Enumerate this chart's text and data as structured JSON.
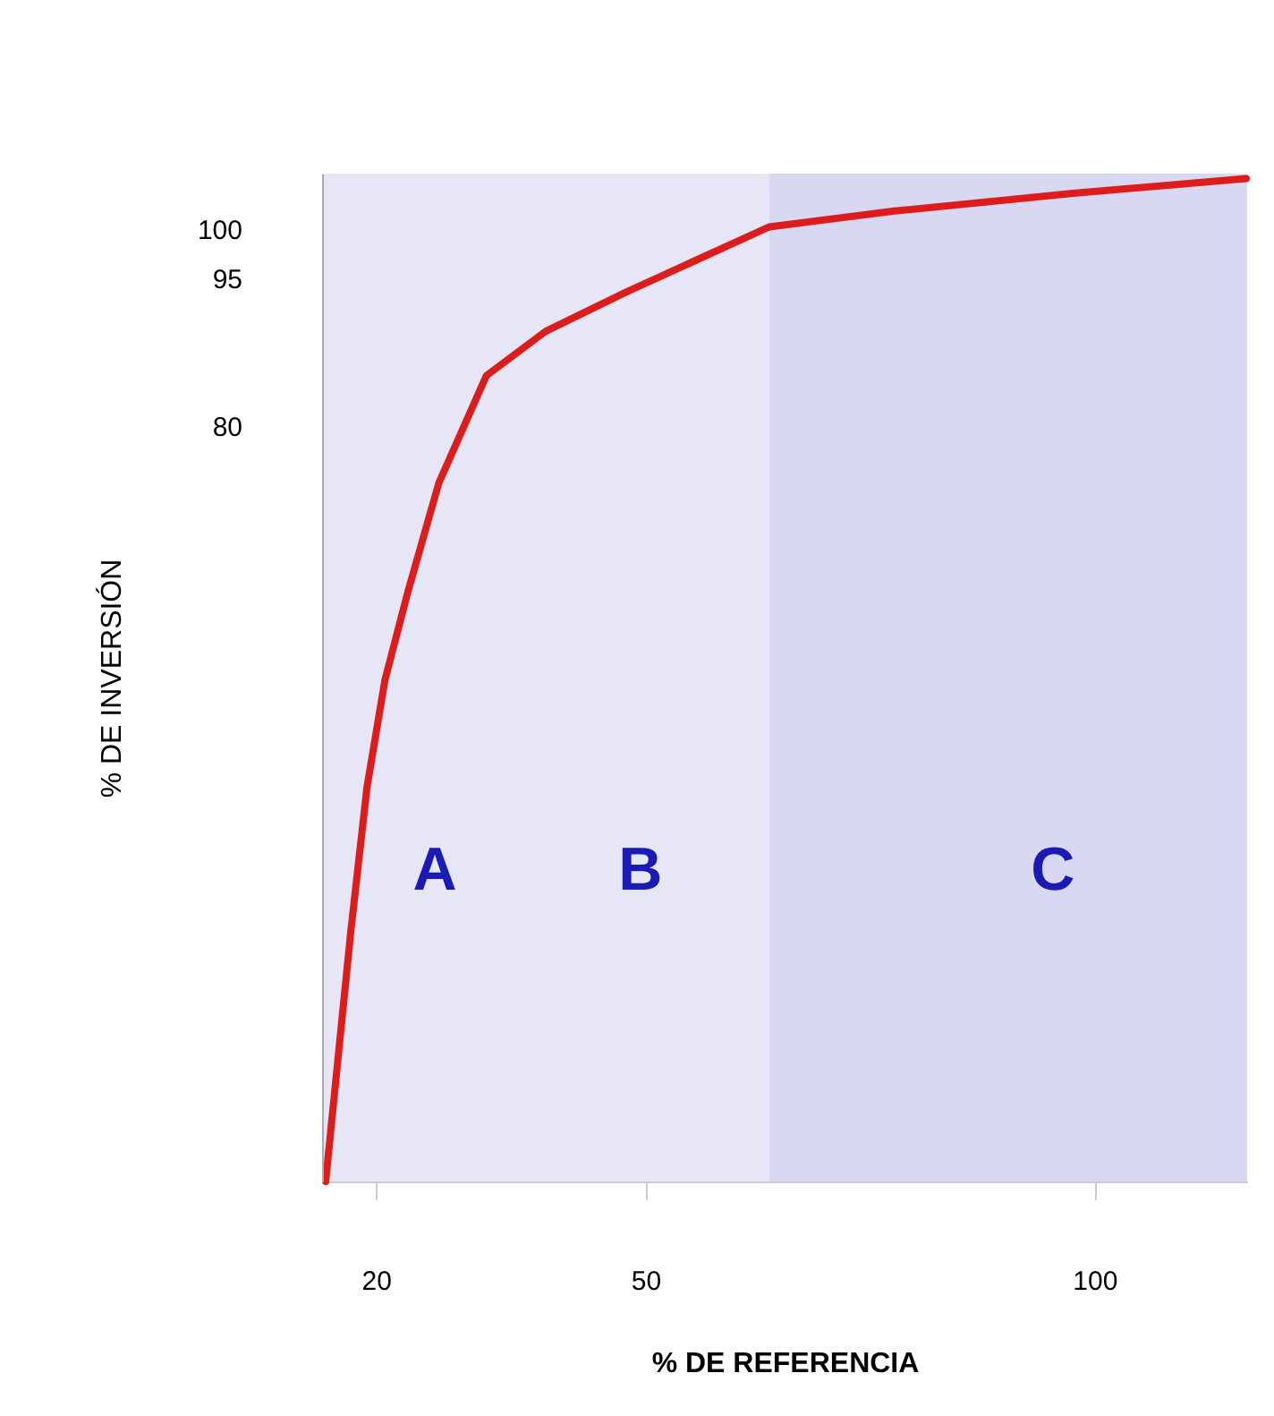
{
  "chart_data": {
    "type": "line",
    "xlabel": "% DE REFERENCIA",
    "ylabel": "% DE INVERSIÓN",
    "x": [
      14.4,
      15.6,
      17.2,
      19.0,
      21.0,
      23.6,
      27.0,
      32.3,
      38.9,
      47.9,
      63.8,
      77.7,
      97.6,
      116.9
    ],
    "series": [
      {
        "color": "#dd1c1c",
        "values": [
          3.3,
          14.2,
          28.7,
          43.3,
          54.2,
          63.3,
          74.2,
          85.1,
          89.6,
          93.6,
          100.2,
          101.8,
          103.6,
          105.1
        ]
      }
    ],
    "xlim": [
      14,
      117
    ],
    "ylim": [
      3.3,
      105.6
    ],
    "xticks": [
      20,
      50,
      100
    ],
    "yticks": [
      80,
      95,
      100
    ],
    "bands": [
      {
        "axis": "x",
        "from": 14,
        "to": 63.8,
        "color": "#e6e6f6"
      },
      {
        "axis": "x",
        "from": 63.8,
        "to": 117,
        "color": "#d8d8f2"
      }
    ],
    "annotations": [
      "A",
      "B",
      "C"
    ],
    "grid": false,
    "marker": "none",
    "line_style": "solid"
  }
}
